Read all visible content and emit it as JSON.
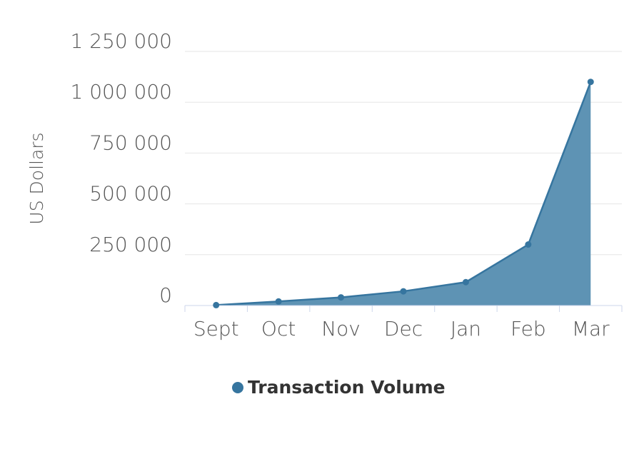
{
  "chart_data": {
    "type": "area",
    "title": "",
    "xlabel": "",
    "ylabel": "US Dollars",
    "categories": [
      "Sept",
      "Oct",
      "Nov",
      "Dec",
      "Jan",
      "Feb",
      "Mar"
    ],
    "series": [
      {
        "name": "Transaction Volume",
        "values": [
          2000,
          20000,
          40000,
          70000,
          115000,
          300000,
          1100000
        ],
        "color": "#36759f"
      }
    ],
    "ylim": [
      0,
      1250000
    ],
    "yticks": [
      0,
      250000,
      500000,
      750000,
      1000000,
      1250000
    ],
    "ytick_labels": [
      "0",
      "250 000",
      "500 000",
      "750 000",
      "1 000 000",
      "1 250 000"
    ],
    "grid": true,
    "legend": "bottom-center",
    "fill_color": "#5e93b4"
  }
}
